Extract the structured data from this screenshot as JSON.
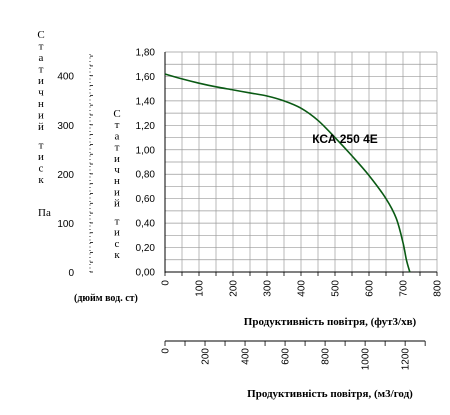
{
  "chart_data": {
    "type": "line",
    "series_label": "КСА 250 4Е",
    "line_color": "#0a5a14",
    "x": [
      0,
      50,
      100,
      150,
      200,
      250,
      300,
      350,
      400,
      450,
      500,
      550,
      600,
      650,
      680,
      700,
      710,
      720
    ],
    "y": [
      1.62,
      1.58,
      1.545,
      1.515,
      1.49,
      1.465,
      1.44,
      1.4,
      1.34,
      1.24,
      1.1,
      0.95,
      0.79,
      0.6,
      0.44,
      0.24,
      0.1,
      0.0
    ],
    "xlim": [
      0,
      800
    ],
    "ylim": [
      0,
      1.8
    ],
    "grid": true,
    "x_ticks": [
      "0",
      "100",
      "200",
      "300",
      "400",
      "500",
      "600",
      "700",
      "800"
    ],
    "y_ticks_inwg": [
      "0,00",
      "0,20",
      "0,40",
      "0,60",
      "0,80",
      "1,00",
      "1,20",
      "1,40",
      "1,60",
      "1,80"
    ],
    "y_ticks_pa": [
      "0",
      "100",
      "200",
      "300",
      "400"
    ],
    "x2_ticks": [
      "0",
      "200",
      "400",
      "600",
      "800",
      "1000",
      "1200"
    ],
    "ylabel_pa_vertical": "Статичний тиск",
    "ylabel_pa_unit": "Па",
    "ylabel_inwg_vertical": "Статичний тиск",
    "ylabel_inwg_unit": "(дюйм вод. ст)",
    "xlabel": "Продуктивність повітря, (фут3/хв)",
    "x2label": "Продуктивність повітря, (м3/год)"
  }
}
